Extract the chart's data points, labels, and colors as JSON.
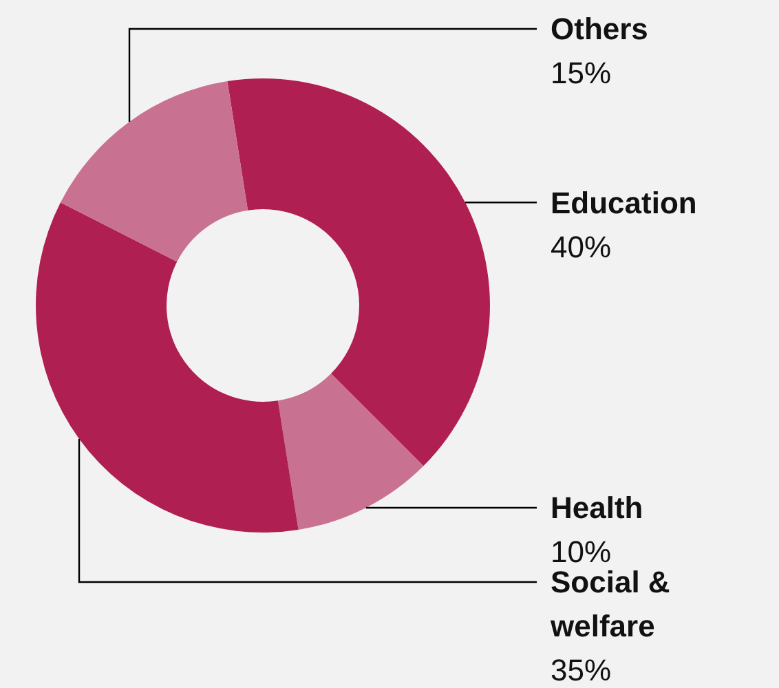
{
  "chart_data": {
    "type": "donut",
    "categories": [
      "Education",
      "Health",
      "Social & welfare",
      "Others"
    ],
    "values": [
      40,
      10,
      35,
      15
    ],
    "value_labels": [
      "40%",
      "10%",
      "35%",
      "15%"
    ],
    "colors": [
      "#b01f52",
      "#c97190",
      "#b01f52",
      "#c97190"
    ]
  }
}
